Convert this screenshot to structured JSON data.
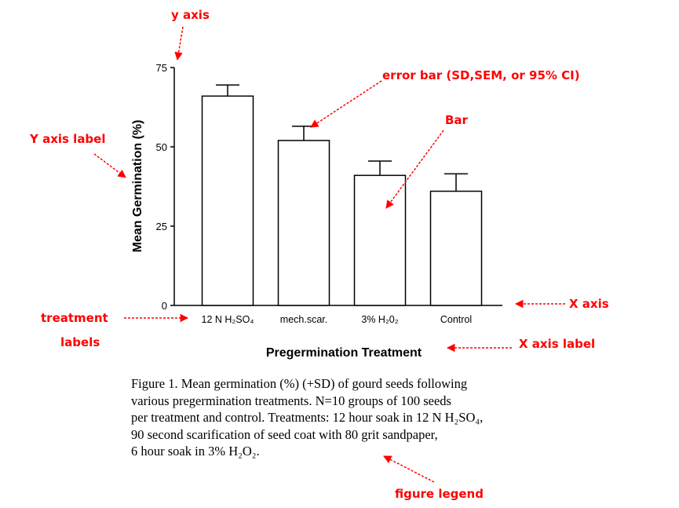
{
  "chart_data": {
    "type": "bar",
    "categories": [
      "12 N H₂SO₄",
      "mech.scar.",
      "3% H₂0₂",
      "Control"
    ],
    "values": [
      66,
      52,
      41,
      36
    ],
    "errors": [
      3.5,
      4.5,
      4.5,
      5.5
    ],
    "ylabel": "Mean Germination (%)",
    "xlabel": "Pregermination Treatment",
    "ylim": [
      0,
      75
    ],
    "yticks": [
      "0",
      "25",
      "50",
      "75"
    ],
    "grid": false,
    "legend": "none"
  },
  "annotations": {
    "y_axis": "y axis",
    "error_bar": "error bar (SD,SEM, or 95% CI)",
    "bar": "Bar",
    "y_axis_label": "Y axis label",
    "x_axis": "X axis",
    "treatment_labels_line1": "treatment",
    "treatment_labels_line2": "labels",
    "x_axis_label": "X axis label",
    "figure_legend": "figure legend"
  },
  "caption": {
    "line1": "Figure 1. Mean germination (%) (+SD) of gourd seeds following",
    "line2": "various pregermination treatments. N=10 groups of 100 seeds",
    "line3": "per treatment and control. Treatments: 12 hour soak in 12 N H₂SO₄,",
    "line4": "90 second scarification of seed coat with 80 grit sandpaper,",
    "line5": "6 hour soak in 3% H₂O₂."
  },
  "colors": {
    "annotation": "#ff0000",
    "bar_fill": "#ffffff",
    "stroke": "#000000"
  }
}
